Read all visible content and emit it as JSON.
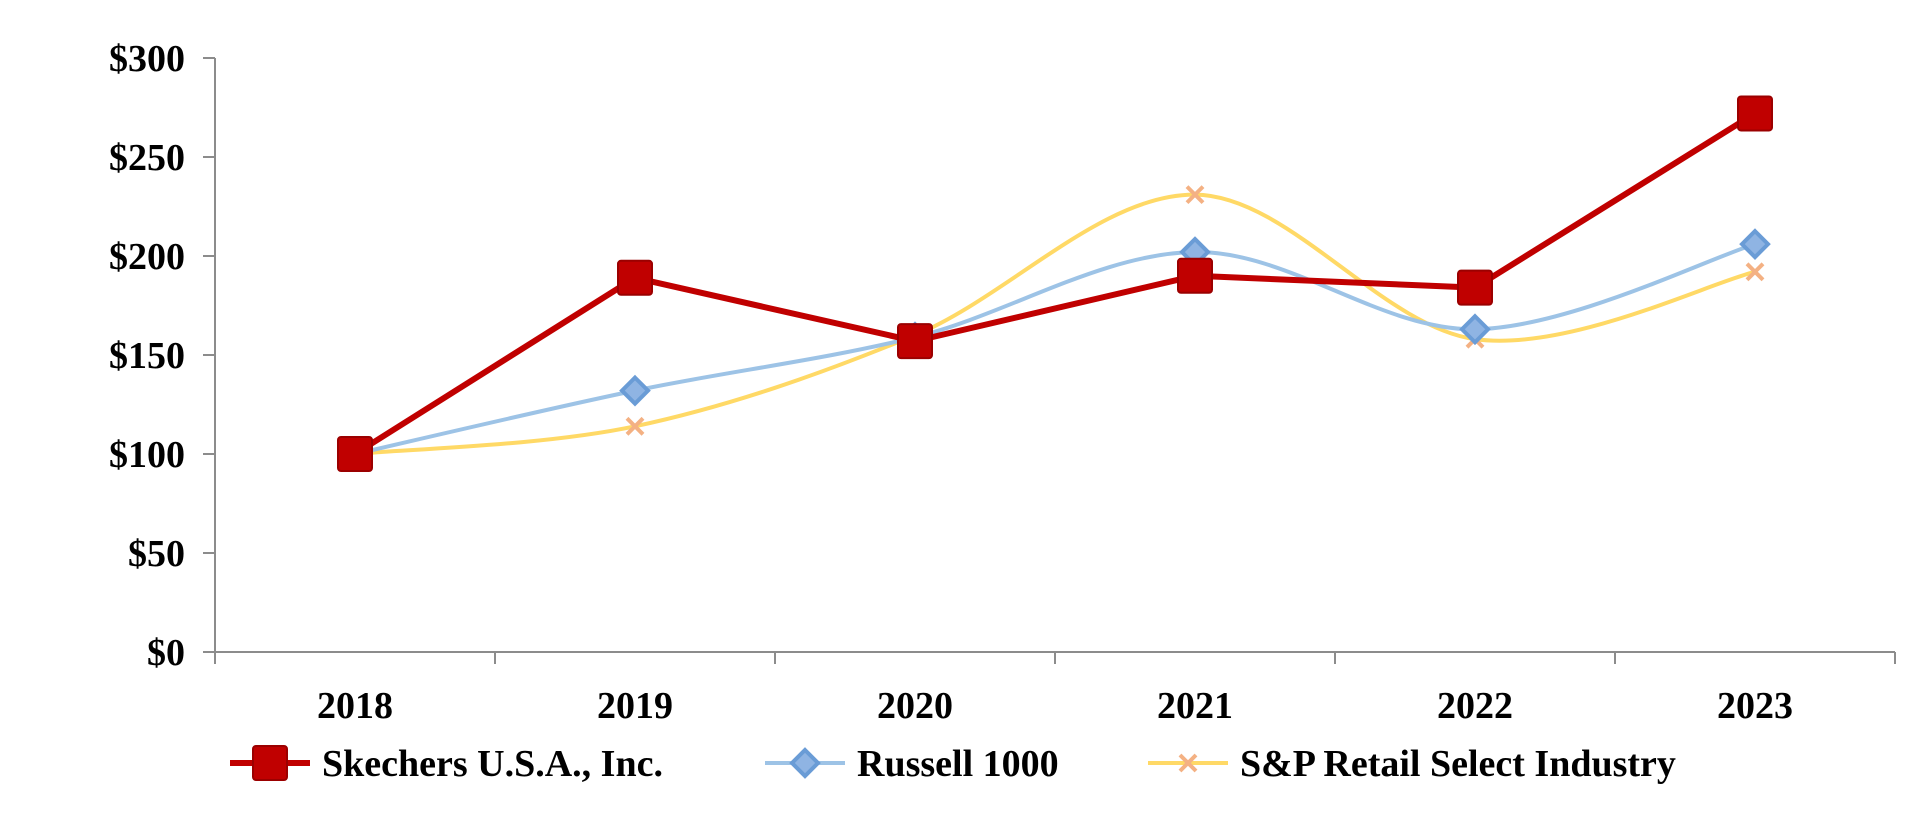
{
  "chart_data": {
    "type": "line",
    "categories": [
      "2018",
      "2019",
      "2020",
      "2021",
      "2022",
      "2023"
    ],
    "ylim": [
      0,
      300
    ],
    "y_ticks": [
      "$0",
      "$50",
      "$100",
      "$150",
      "$200",
      "$250",
      "$300"
    ],
    "y_tick_values": [
      0,
      50,
      100,
      150,
      200,
      250,
      300
    ],
    "grid": false,
    "legend_position": "bottom",
    "series": [
      {
        "name": "Skechers U.S.A., Inc.",
        "values": [
          100,
          189,
          157,
          190,
          184,
          272
        ],
        "color": "#C00000",
        "marker": "square",
        "smooth": false
      },
      {
        "name": "Russell 1000",
        "values": [
          100,
          132,
          159,
          202,
          163,
          206
        ],
        "color": "#9DC3E6",
        "marker_fill": "#8FB4E3",
        "marker_stroke": "#6A9CD6",
        "marker": "diamond",
        "smooth": true
      },
      {
        "name": "S&P Retail Select Industry",
        "values": [
          100,
          114,
          160,
          231,
          158,
          192
        ],
        "color": "#FFD966",
        "marker_color": "#F4B183",
        "marker": "x",
        "smooth": true
      }
    ]
  }
}
